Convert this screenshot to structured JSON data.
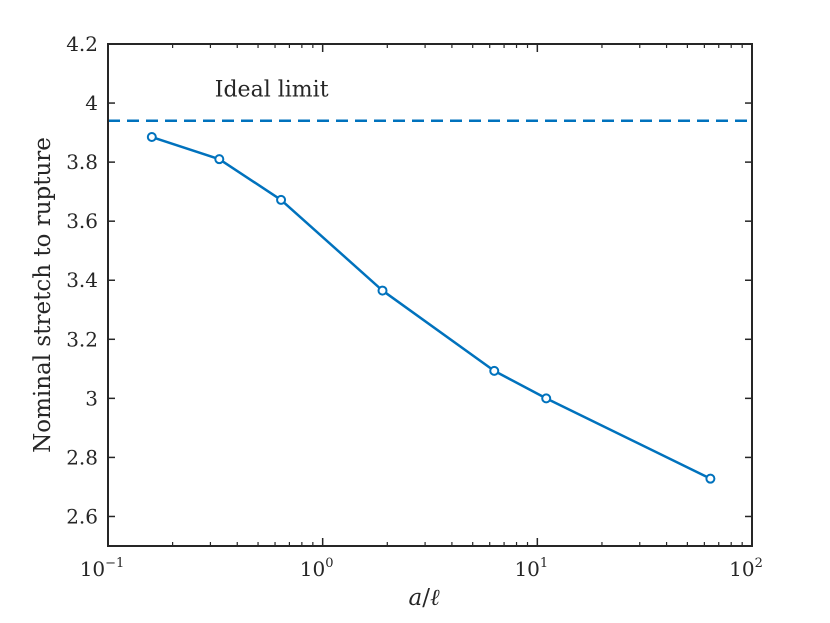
{
  "chart_data": {
    "type": "line",
    "title": "",
    "xlabel": {
      "a": "a",
      "slash": "/",
      "l": "ℓ"
    },
    "ylabel": "Nominal stretch to rupture",
    "xscale": "log",
    "xlim": [
      0.1,
      100
    ],
    "ylim": [
      2.5,
      4.2
    ],
    "grid": false,
    "x_ticks": [
      {
        "value": 0.1,
        "base": "10",
        "exp": "−1"
      },
      {
        "value": 1,
        "base": "10",
        "exp": "0"
      },
      {
        "value": 10,
        "base": "10",
        "exp": "1"
      },
      {
        "value": 100,
        "base": "10",
        "exp": "2"
      }
    ],
    "y_ticks": [
      {
        "value": 2.6,
        "label": "2.6"
      },
      {
        "value": 2.8,
        "label": "2.8"
      },
      {
        "value": 3.0,
        "label": "3"
      },
      {
        "value": 3.2,
        "label": "3.2"
      },
      {
        "value": 3.4,
        "label": "3.4"
      },
      {
        "value": 3.6,
        "label": "3.6"
      },
      {
        "value": 3.8,
        "label": "3.8"
      },
      {
        "value": 4.0,
        "label": "4"
      },
      {
        "value": 4.2,
        "label": "4.2"
      }
    ],
    "series": [
      {
        "color": "#0072BD",
        "marker": "circle",
        "x": [
          0.16,
          0.33,
          0.64,
          1.9,
          6.3,
          11,
          64
        ],
        "y": [
          3.885,
          3.81,
          3.672,
          3.365,
          3.093,
          3.0,
          2.728
        ]
      }
    ],
    "reference_line": {
      "y": 3.94,
      "style": "dashed",
      "color": "#0072BD"
    },
    "annotation": {
      "text": "Ideal limit",
      "x": 0.35,
      "y": 4.05
    }
  }
}
